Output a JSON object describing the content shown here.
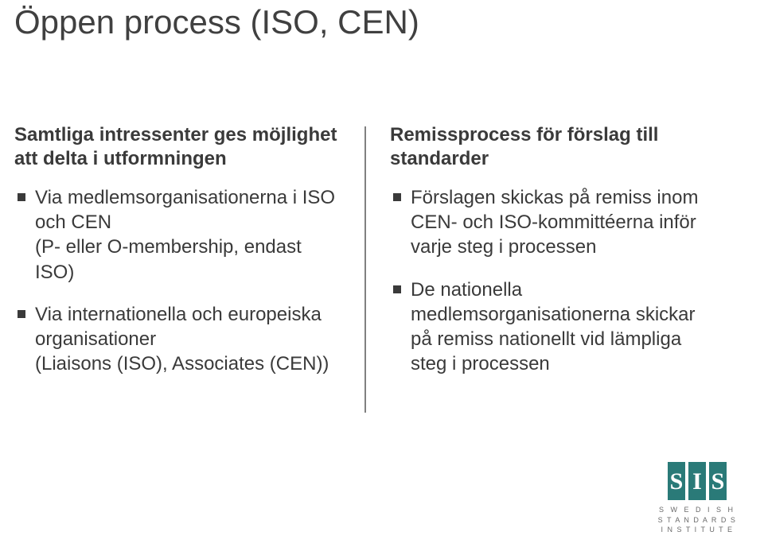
{
  "title": "Öppen process (ISO, CEN)",
  "left": {
    "heading": "Samtliga intressenter ges möjlighet att delta i utformningen",
    "bullets": [
      "Via medlemsorganisationerna i ISO och CEN\n(P- eller O-membership, endast ISO)",
      "Via internationella och europeiska organisationer\n(Liaisons (ISO), Associates (CEN))"
    ]
  },
  "right": {
    "heading": "Remissprocess för förslag till standarder",
    "bullets": [
      "Förslagen skickas på remiss inom CEN- och ISO-kommittéerna inför varje steg i processen",
      "De nationella medlemsorganisationerna skickar på remiss nationellt vid lämpliga steg i processen"
    ]
  },
  "logo": {
    "line1": "S W E D I S H",
    "line2": "S T A N D A R D S",
    "line3": "I N S T I T U T E",
    "brand_color": "#2a7a78"
  },
  "colors": {
    "background": "#ffffff",
    "text": "#3a3a3a",
    "divider": "#808080",
    "bullet": "#3a3a3a"
  }
}
